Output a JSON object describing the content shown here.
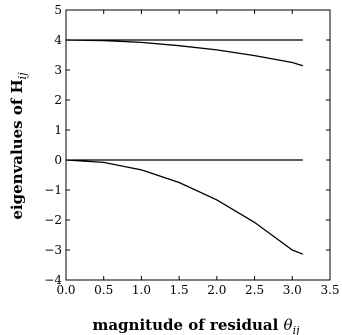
{
  "chart_data": {
    "type": "line",
    "xlabel": {
      "prefix": "magnitude of residual ",
      "symbol": "θ",
      "subscript": "ij"
    },
    "ylabel": {
      "prefix": "eigenvalues of ",
      "symbol": "H",
      "subscript": "ij"
    },
    "xlim": [
      0.0,
      3.5
    ],
    "ylim": [
      -4,
      5
    ],
    "xticks": [
      0.0,
      0.5,
      1.0,
      1.5,
      2.0,
      2.5,
      3.0,
      3.5
    ],
    "xtick_labels": [
      "0.0",
      "0.5",
      "1.0",
      "1.5",
      "2.0",
      "2.5",
      "3.0",
      "3.5"
    ],
    "yticks": [
      -4,
      -3,
      -2,
      -1,
      0,
      1,
      2,
      3,
      4,
      5
    ],
    "ytick_labels": [
      "−4",
      "−3",
      "−2",
      "−1",
      "0",
      "1",
      "2",
      "3",
      "4",
      "5"
    ],
    "grid": false,
    "series": [
      {
        "x": [
          0.0,
          0.5,
          1.0,
          1.5,
          2.0,
          2.5,
          3.0,
          3.14
        ],
        "y": [
          4.0,
          4.0,
          4.0,
          4.0,
          4.0,
          4.0,
          4.0,
          4.0
        ]
      },
      {
        "x": [
          0.0,
          0.5,
          1.0,
          1.5,
          2.0,
          2.5,
          3.0,
          3.14
        ],
        "y": [
          4.0,
          3.98,
          3.92,
          3.81,
          3.67,
          3.48,
          3.25,
          3.14
        ]
      },
      {
        "x": [
          0.0,
          0.5,
          1.0,
          1.5,
          2.0,
          2.5,
          3.0,
          3.14
        ],
        "y": [
          0.0,
          0.0,
          0.0,
          0.0,
          0.0,
          0.0,
          0.0,
          0.0
        ]
      },
      {
        "x": [
          0.0,
          0.5,
          1.0,
          1.5,
          2.0,
          2.5,
          3.0,
          3.14
        ],
        "y": [
          0.0,
          -0.08,
          -0.33,
          -0.75,
          -1.33,
          -2.08,
          -3.0,
          -3.14
        ]
      }
    ],
    "colors": {
      "line": "#000000",
      "axes": "#000000"
    }
  }
}
